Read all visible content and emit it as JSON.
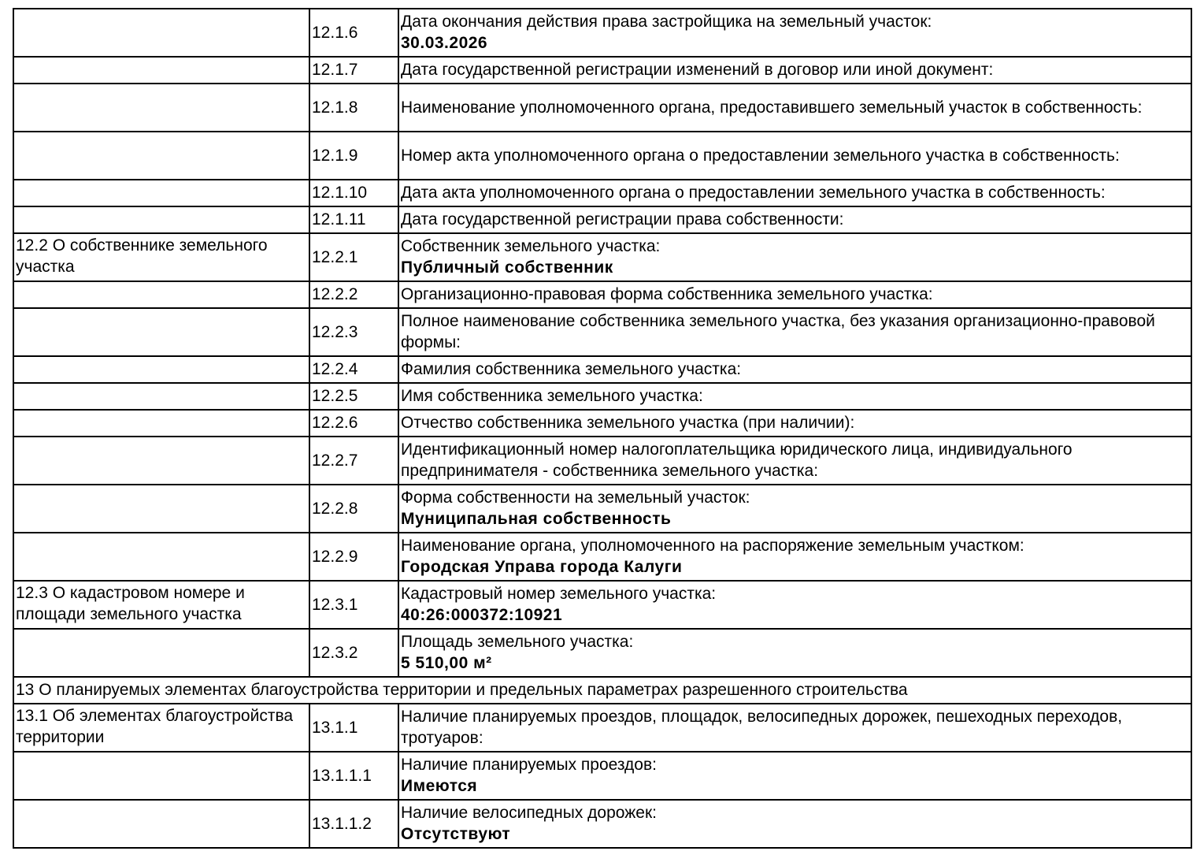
{
  "rows": [
    {
      "section": "",
      "code": "12.1.6",
      "label": "Дата окончания действия права застройщика на земельный участок:",
      "value": "30.03.2026"
    },
    {
      "section": "",
      "code": "12.1.7",
      "label": "Дата государственной регистрации изменений в договор или иной документ:"
    },
    {
      "section": "",
      "code": "12.1.8",
      "label": "Наименование уполномоченного органа, предоставившего земельный участок в собственность:"
    },
    {
      "section": "",
      "code": "12.1.9",
      "label": "Номер акта уполномоченного органа о предоставлении земельного участка в собственность:"
    },
    {
      "section": "",
      "code": "12.1.10",
      "label": "Дата акта уполномоченного органа о предоставлении земельного участка в собственность:"
    },
    {
      "section": "",
      "code": "12.1.11",
      "label": "Дата государственной регистрации права собственности:"
    },
    {
      "section": "12.2 О собственнике земельного участка",
      "code": "12.2.1",
      "label": "Собственник земельного участка:",
      "value": "Публичный собственник"
    },
    {
      "section": "",
      "code": "12.2.2",
      "label": "Организационно-правовая форма собственника земельного участка:"
    },
    {
      "section": "",
      "code": "12.2.3",
      "label": "Полное наименование собственника земельного участка, без указания организационно-правовой формы:"
    },
    {
      "section": "",
      "code": "12.2.4",
      "label": "Фамилия собственника земельного участка:"
    },
    {
      "section": "",
      "code": "12.2.5",
      "label": "Имя собственника земельного участка:"
    },
    {
      "section": "",
      "code": "12.2.6",
      "label": "Отчество собственника земельного участка (при наличии):"
    },
    {
      "section": "",
      "code": "12.2.7",
      "label": "Идентификационный номер налогоплательщика юридического лица, индивидуального предпринимателя - собственника земельного участка:"
    },
    {
      "section": "",
      "code": "12.2.8",
      "label": "Форма собственности на земельный участок:",
      "value": "Муниципальная собственность"
    },
    {
      "section": "",
      "code": "12.2.9",
      "label": "Наименование органа, уполномоченного на распоряжение земельным участком:",
      "value": "Городская Управа города Калуги"
    },
    {
      "section": "12.3 О кадастровом номере и площади земельного участка",
      "code": "12.3.1",
      "label": "Кадастровый номер земельного участка:",
      "value": "40:26:000372:10921"
    },
    {
      "section": "",
      "code": "12.3.2",
      "label": "Площадь земельного участка:",
      "value": "5 510,00 м²"
    },
    {
      "full": "13 О планируемых элементах благоустройства территории и предельных параметрах разрешенного строительства"
    },
    {
      "section": "13.1 Об элементах благоустройства территории",
      "code": "13.1.1",
      "label": "Наличие планируемых проездов, площадок, велосипедных дорожек, пешеходных переходов, тротуаров:"
    },
    {
      "section": "",
      "code": "13.1.1.1",
      "label": "Наличие планируемых проездов:",
      "value": "Имеются"
    },
    {
      "section": "",
      "code": "13.1.1.2",
      "label": "Наличие велосипедных дорожек:",
      "value": "Отсутствуют"
    }
  ]
}
